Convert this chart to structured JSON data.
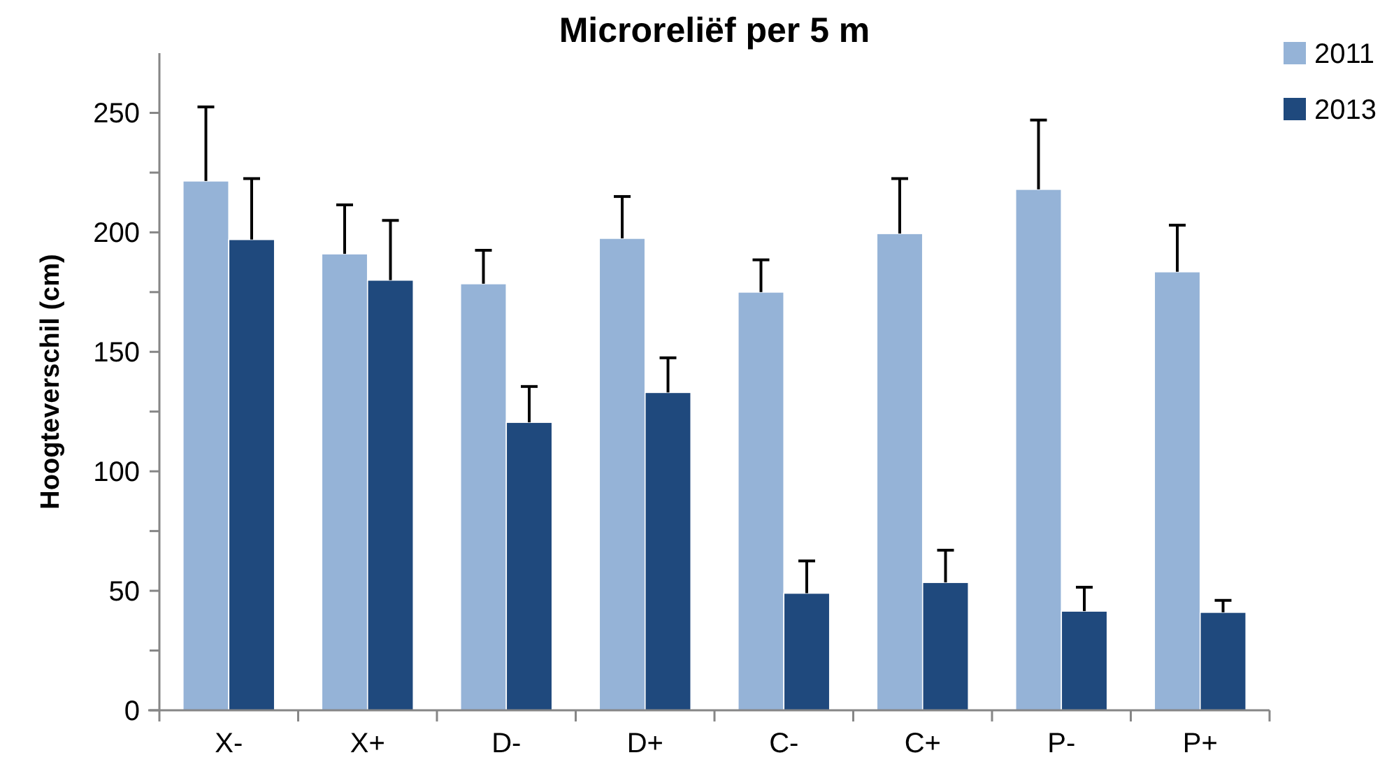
{
  "chart_data": {
    "type": "bar",
    "title": "Microreliëf per 5 m",
    "ylabel": "Hoogteverschil (cm)",
    "categories": [
      "X-",
      "X+",
      "D-",
      "D+",
      "C-",
      "C+",
      "P-",
      "P+"
    ],
    "series": [
      {
        "name": "2011",
        "color": "#95b3d7",
        "values": [
          221.5,
          191,
          178.5,
          197.5,
          175,
          199.5,
          218,
          183.5
        ],
        "errors": [
          [
            221.5,
            252.5
          ],
          [
            191,
            211.5
          ],
          [
            178.5,
            192.5
          ],
          [
            197.5,
            215
          ],
          [
            175,
            188.5
          ],
          [
            199.5,
            222.5
          ],
          [
            218,
            247
          ],
          [
            183.5,
            203
          ]
        ]
      },
      {
        "name": "2013",
        "color": "#1f497d",
        "values": [
          197,
          180,
          120.5,
          133,
          49,
          53.5,
          41.5,
          41
        ],
        "errors": [
          [
            197,
            222.5
          ],
          [
            180,
            205
          ],
          [
            120.5,
            135.5
          ],
          [
            133,
            147.5
          ],
          [
            49,
            62.5
          ],
          [
            53.5,
            67
          ],
          [
            41.5,
            51.5
          ],
          [
            41,
            46
          ]
        ]
      }
    ],
    "ylim": [
      0,
      275
    ],
    "yticks": [
      0,
      {
        "value": 25,
        "label": null
      },
      50,
      {
        "value": 75,
        "label": null
      },
      100,
      {
        "value": 125,
        "label": null
      },
      150,
      {
        "value": 175,
        "label": null
      },
      200,
      {
        "value": 225,
        "label": null
      },
      250
    ],
    "grid": false,
    "legend": "top right"
  }
}
